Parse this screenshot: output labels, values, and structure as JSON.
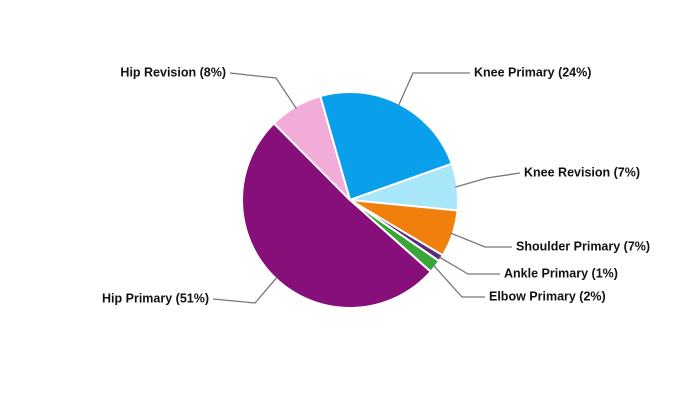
{
  "chart_data": {
    "type": "pie",
    "categories": [
      "Knee Primary (24%)",
      "Knee Revision (7%)",
      "Shoulder Primary (7%)",
      "Ankle Primary (1%)",
      "Elbow Primary (2%)",
      "Hip Primary (51%)",
      "Hip Revision (8%)"
    ],
    "values": [
      24,
      7,
      7,
      1,
      2,
      51,
      8
    ],
    "colors": [
      "#0a9fea",
      "#a8e6fa",
      "#f07f0b",
      "#5b2a7e",
      "#3aa63a",
      "#870f7a",
      "#f2acd9"
    ]
  }
}
